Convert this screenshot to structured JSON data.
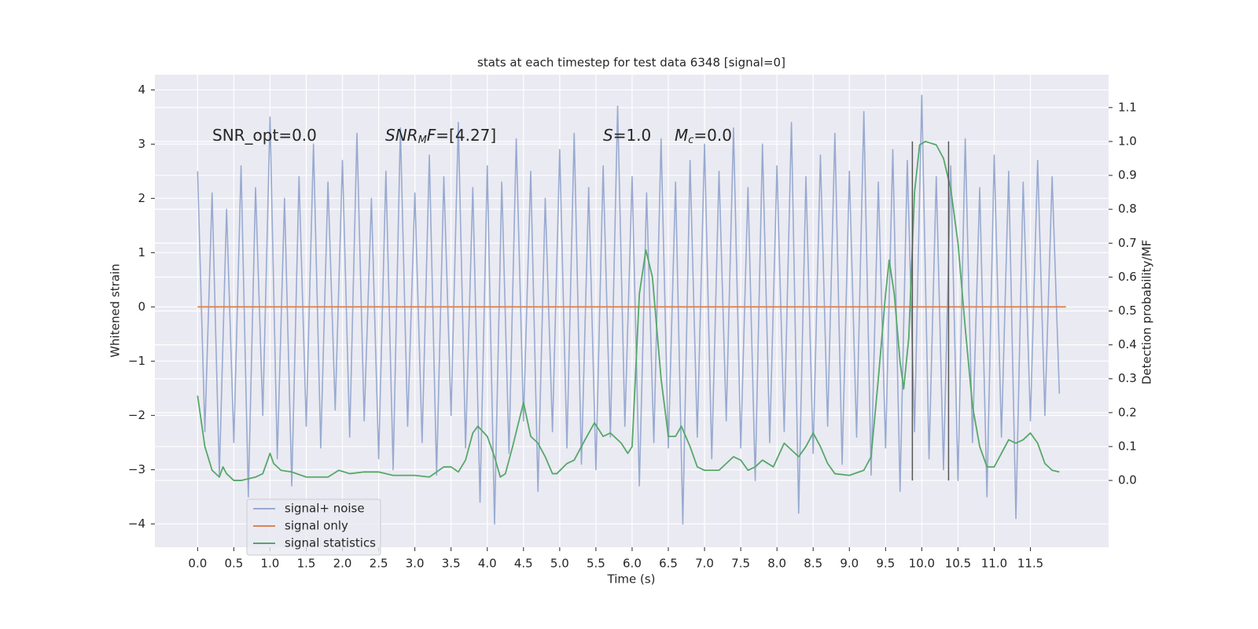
{
  "chart_data": {
    "type": "line",
    "title": "stats at each timestep for test data 6348 [signal=0]",
    "xlabel": "Time (s)",
    "ylabel": "Whitened strain",
    "y2label": "Detection probability/MF",
    "xlim": [
      -0.59,
      12.58
    ],
    "ylim": [
      -4.43,
      4.28
    ],
    "y2lim": [
      -0.197,
      1.197
    ],
    "xticks": [
      {
        "value": 0,
        "label": "0.0"
      },
      {
        "value": 0.5,
        "label": "0.5"
      },
      {
        "value": 1,
        "label": "1.0"
      },
      {
        "value": 1.5,
        "label": "1.5"
      },
      {
        "value": 2,
        "label": "2.0"
      },
      {
        "value": 2.5,
        "label": "2.5"
      },
      {
        "value": 3,
        "label": "3.0"
      },
      {
        "value": 3.5,
        "label": "3.5"
      },
      {
        "value": 4,
        "label": "4.0"
      },
      {
        "value": 4.5,
        "label": "4.5"
      },
      {
        "value": 5,
        "label": "5.0"
      },
      {
        "value": 5.5,
        "label": "5.5"
      },
      {
        "value": 6,
        "label": "6.0"
      },
      {
        "value": 6.5,
        "label": "6.5"
      },
      {
        "value": 7,
        "label": "7.0"
      },
      {
        "value": 7.5,
        "label": "7.5"
      },
      {
        "value": 8,
        "label": "8.0"
      },
      {
        "value": 8.5,
        "label": "8.5"
      },
      {
        "value": 9,
        "label": "9.0"
      },
      {
        "value": 9.5,
        "label": "9.5"
      },
      {
        "value": 10,
        "label": "10.0"
      },
      {
        "value": 10.5,
        "label": "10.5"
      },
      {
        "value": 11,
        "label": "11.0"
      },
      {
        "value": 11.5,
        "label": "11.5"
      }
    ],
    "yticks": [
      {
        "value": -4,
        "label": "−4"
      },
      {
        "value": -3,
        "label": "−3"
      },
      {
        "value": -2,
        "label": "−2"
      },
      {
        "value": -1,
        "label": "−1"
      },
      0,
      1,
      2,
      3,
      4
    ],
    "y2ticks": [
      {
        "value": 0,
        "label": "0.0"
      },
      {
        "value": 0.1,
        "label": "0.1"
      },
      {
        "value": 0.2,
        "label": "0.2"
      },
      {
        "value": 0.3,
        "label": "0.3"
      },
      {
        "value": 0.4,
        "label": "0.4"
      },
      {
        "value": 0.5,
        "label": "0.5"
      },
      {
        "value": 0.6,
        "label": "0.6"
      },
      {
        "value": 0.7,
        "label": "0.7"
      },
      {
        "value": 0.8,
        "label": "0.8"
      },
      {
        "value": 0.9,
        "label": "0.9"
      },
      {
        "value": 1,
        "label": "1.0"
      },
      {
        "value": 1.1,
        "label": "1.1"
      }
    ],
    "grid": true,
    "legend": "lower left",
    "annotations": [
      [
        "SNR_opt=0.0"
      ],
      [
        "SNR",
        "M",
        "F",
        "=[4.27]"
      ],
      [
        "S",
        "=1.0"
      ],
      [
        "M",
        "c",
        "=0.0"
      ]
    ],
    "vlines": {
      "x": [
        9.87,
        10.37
      ],
      "ylim": [
        0,
        1
      ],
      "color": "#555555"
    },
    "series": [
      {
        "name": "signal+ noise",
        "color": "#98aad0",
        "x": [
          0,
          0.1,
          0.2,
          0.3,
          0.4,
          0.5,
          0.6,
          0.7,
          0.8,
          0.9,
          1,
          1.1,
          1.2,
          1.3,
          1.4,
          1.5,
          1.6,
          1.7,
          1.8,
          1.9,
          2,
          2.1,
          2.2,
          2.3,
          2.4,
          2.5,
          2.6,
          2.7,
          2.8,
          2.9,
          3,
          3.1,
          3.2,
          3.3,
          3.4,
          3.5,
          3.6,
          3.7,
          3.8,
          3.9,
          4,
          4.1,
          4.2,
          4.3,
          4.4,
          4.5,
          4.6,
          4.7,
          4.8,
          4.9,
          5,
          5.1,
          5.2,
          5.3,
          5.4,
          5.5,
          5.6,
          5.7,
          5.8,
          5.9,
          6,
          6.1,
          6.2,
          6.3,
          6.4,
          6.5,
          6.6,
          6.7,
          6.8,
          6.9,
          7,
          7.1,
          7.2,
          7.3,
          7.4,
          7.5,
          7.6,
          7.7,
          7.8,
          7.9,
          8,
          8.1,
          8.2,
          8.3,
          8.4,
          8.5,
          8.6,
          8.7,
          8.8,
          8.9,
          9,
          9.1,
          9.2,
          9.3,
          9.4,
          9.5,
          9.6,
          9.7,
          9.8,
          9.9,
          10,
          10.1,
          10.2,
          10.3,
          10.4,
          10.5,
          10.6,
          10.7,
          10.8,
          10.9,
          11,
          11.1,
          11.2,
          11.3,
          11.4,
          11.5,
          11.6,
          11.7,
          11.8,
          11.9
        ],
        "values": [
          2.5,
          -2.3,
          2.1,
          -3.1,
          1.8,
          -2.5,
          2.6,
          -3.5,
          2.2,
          -2.0,
          3.5,
          -2.8,
          2.0,
          -3.3,
          2.4,
          -2.2,
          3.0,
          -2.6,
          2.3,
          -1.9,
          2.7,
          -2.4,
          3.2,
          -2.1,
          2.0,
          -2.8,
          2.5,
          -3.0,
          3.3,
          -2.2,
          2.1,
          -2.5,
          2.8,
          -3.1,
          2.4,
          -2.0,
          3.4,
          -2.6,
          2.2,
          -3.6,
          2.6,
          -4.0,
          2.3,
          -2.7,
          3.1,
          -2.1,
          2.5,
          -3.4,
          2.0,
          -2.3,
          2.9,
          -2.6,
          3.2,
          -2.9,
          2.2,
          -3.0,
          2.6,
          -2.4,
          3.7,
          -2.2,
          2.4,
          -3.3,
          2.1,
          -2.5,
          3.1,
          -2.6,
          2.3,
          -4.0,
          2.7,
          -2.4,
          3.0,
          -2.8,
          2.5,
          -2.1,
          3.3,
          -2.6,
          2.2,
          -3.2,
          3.0,
          -2.5,
          2.6,
          -2.3,
          3.4,
          -3.8,
          2.4,
          -2.7,
          2.8,
          -2.2,
          3.2,
          -2.9,
          2.5,
          -2.4,
          3.6,
          -3.1,
          2.3,
          -2.6,
          2.9,
          -3.4,
          2.7,
          -2.3,
          3.9,
          -2.8,
          2.4,
          -3.0,
          2.6,
          -3.2,
          3.1,
          -2.5,
          2.2,
          -3.5,
          2.8,
          -2.4,
          2.5,
          -3.9,
          2.3,
          -2.1,
          2.7,
          -2.0,
          2.4,
          -1.6
        ]
      },
      {
        "name": "signal only",
        "color": "#dd8452",
        "x": [
          0,
          11.99
        ],
        "values": [
          0,
          0
        ]
      },
      {
        "name": "signal statistics",
        "color": "#55a868",
        "axis": "y2",
        "x": [
          0,
          0.1,
          0.2,
          0.3,
          0.35,
          0.4,
          0.5,
          0.6,
          0.8,
          0.9,
          1.0,
          1.05,
          1.15,
          1.3,
          1.5,
          1.8,
          1.95,
          2.1,
          2.3,
          2.5,
          2.7,
          3.0,
          3.2,
          3.4,
          3.5,
          3.6,
          3.7,
          3.8,
          3.87,
          4.0,
          4.1,
          4.18,
          4.25,
          4.35,
          4.5,
          4.6,
          4.7,
          4.8,
          4.9,
          4.96,
          5.1,
          5.2,
          5.35,
          5.48,
          5.6,
          5.7,
          5.85,
          5.94,
          6.0,
          6.1,
          6.19,
          6.28,
          6.4,
          6.5,
          6.6,
          6.68,
          6.8,
          6.9,
          7.0,
          7.2,
          7.4,
          7.5,
          7.6,
          7.7,
          7.8,
          7.95,
          8.1,
          8.3,
          8.4,
          8.5,
          8.6,
          8.7,
          8.8,
          9.0,
          9.2,
          9.3,
          9.4,
          9.5,
          9.55,
          9.62,
          9.7,
          9.75,
          9.82,
          9.9,
          9.97,
          10.05,
          10.2,
          10.3,
          10.4,
          10.5,
          10.6,
          10.7,
          10.8,
          10.9,
          11.0,
          11.1,
          11.2,
          11.3,
          11.4,
          11.5,
          11.6,
          11.7,
          11.8,
          11.9
        ],
        "values": [
          0.25,
          0.1,
          0.03,
          0.01,
          0.04,
          0.02,
          0.0,
          0.0,
          0.01,
          0.02,
          0.08,
          0.05,
          0.03,
          0.025,
          0.01,
          0.01,
          0.03,
          0.02,
          0.025,
          0.025,
          0.015,
          0.015,
          0.01,
          0.04,
          0.04,
          0.025,
          0.06,
          0.14,
          0.16,
          0.13,
          0.07,
          0.01,
          0.02,
          0.1,
          0.23,
          0.13,
          0.11,
          0.07,
          0.02,
          0.02,
          0.05,
          0.06,
          0.12,
          0.17,
          0.13,
          0.14,
          0.11,
          0.08,
          0.1,
          0.55,
          0.68,
          0.6,
          0.3,
          0.13,
          0.13,
          0.16,
          0.1,
          0.04,
          0.03,
          0.03,
          0.07,
          0.06,
          0.03,
          0.04,
          0.06,
          0.04,
          0.11,
          0.07,
          0.1,
          0.14,
          0.1,
          0.05,
          0.02,
          0.015,
          0.03,
          0.07,
          0.3,
          0.55,
          0.65,
          0.55,
          0.35,
          0.27,
          0.42,
          0.85,
          0.99,
          1.0,
          0.99,
          0.95,
          0.86,
          0.7,
          0.45,
          0.22,
          0.1,
          0.04,
          0.04,
          0.08,
          0.12,
          0.11,
          0.12,
          0.14,
          0.11,
          0.05,
          0.03,
          0.025
        ]
      }
    ]
  }
}
